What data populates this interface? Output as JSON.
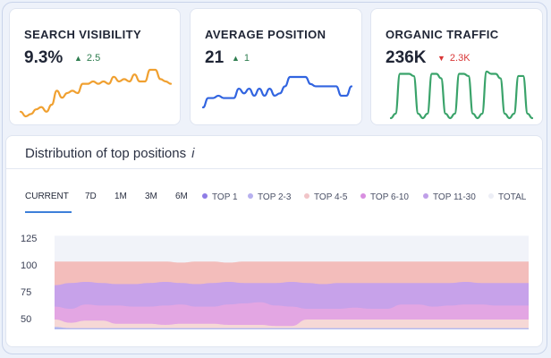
{
  "metrics": [
    {
      "title": "SEARCH VISIBILITY",
      "value": "9.3%",
      "delta": "2.5",
      "direction": "up",
      "color": "#f0a030",
      "spark": [
        2,
        1,
        1.5,
        2.5,
        3,
        2,
        3.5,
        6.5,
        5,
        6,
        6.5,
        6,
        8,
        8,
        8.5,
        8,
        8.5,
        8,
        9.5,
        8.5,
        9,
        8.5,
        10,
        8.5,
        8.5,
        11,
        11,
        9,
        8.5,
        8
      ]
    },
    {
      "title": "AVERAGE POSITION",
      "value": "21",
      "delta": "1",
      "direction": "up",
      "color": "#3164e0",
      "spark": [
        1,
        3,
        3,
        3.5,
        3,
        3,
        3,
        5,
        4,
        5,
        3.5,
        5,
        3.5,
        5,
        3.5,
        4,
        5.5,
        7.5,
        7.5,
        7.5,
        7.5,
        6,
        5.5,
        5.5,
        5.5,
        5.5,
        5.5,
        3.5,
        3.5,
        5.5
      ]
    },
    {
      "title": "ORGANIC TRAFFIC",
      "value": "236K",
      "delta": "2.3K",
      "direction": "down",
      "color": "#3aa36a",
      "spark": [
        2,
        3,
        12,
        12,
        12,
        11.5,
        3,
        2,
        3,
        12,
        12,
        11,
        3,
        2,
        3,
        12,
        12,
        11.5,
        3,
        2,
        3,
        12.5,
        12,
        12,
        11,
        3,
        2,
        3,
        11.5,
        11.5,
        3,
        2
      ]
    }
  ],
  "distribution": {
    "title": "Distribution of top positions",
    "info_icon": "i",
    "tabs": [
      "CURRENT",
      "7D",
      "1M",
      "3M",
      "6M"
    ],
    "active_tab": "CURRENT",
    "legend": [
      {
        "label": "TOP 1",
        "color": "#8e7ce6"
      },
      {
        "label": "TOP 2-3",
        "color": "#b7b0ef"
      },
      {
        "label": "TOP 4-5",
        "color": "#f1c5c8"
      },
      {
        "label": "TOP 6-10",
        "color": "#d88ee0"
      },
      {
        "label": "TOP 11-30",
        "color": "#bf9fe8"
      },
      {
        "label": "TOTAL",
        "color": "#eceef6"
      }
    ],
    "yticks": [
      "125",
      "100",
      "75",
      "50"
    ]
  },
  "chart_data": {
    "type": "area",
    "ylim": [
      40,
      135
    ],
    "xlabel": "",
    "ylabel": "",
    "x": [
      0,
      1,
      2,
      3,
      4,
      5,
      6,
      7,
      8,
      9,
      10,
      11,
      12,
      13,
      14,
      15,
      16,
      17,
      18,
      19,
      20,
      21,
      22,
      23,
      24,
      25,
      26,
      27,
      28,
      29,
      30
    ],
    "series": [
      {
        "name": "TOTAL",
        "color": "#f1f3f9",
        "values": [
          128,
          128,
          128,
          128,
          128,
          128,
          128,
          128,
          128,
          128,
          128,
          128,
          128,
          128,
          128,
          128,
          128,
          128,
          128,
          128,
          128,
          128,
          128,
          128,
          128,
          128,
          128,
          128,
          128,
          128,
          128
        ]
      },
      {
        "name": "TOP 4-5",
        "color": "#f3bdbb",
        "values": [
          104,
          104,
          104,
          104,
          104,
          104,
          104,
          104,
          103,
          104,
          104,
          103,
          104,
          104,
          104,
          104,
          104,
          104,
          104,
          104,
          104,
          104,
          104,
          104,
          104,
          104,
          104,
          104,
          104,
          104,
          104
        ]
      },
      {
        "name": "TOP 11-30",
        "color": "#c7a2ea",
        "values": [
          82,
          84,
          85,
          84,
          83,
          83,
          84,
          85,
          84,
          83,
          84,
          85,
          84,
          84,
          84,
          85,
          84,
          83,
          84,
          84,
          84,
          84,
          84,
          84,
          84,
          84,
          85,
          84,
          84,
          84,
          84
        ]
      },
      {
        "name": "TOP 6-10",
        "color": "#e3a6e3",
        "values": [
          62,
          60,
          64,
          63,
          63,
          62,
          62,
          63,
          64,
          62,
          62,
          64,
          65,
          66,
          63,
          62,
          60,
          60,
          60,
          61,
          60,
          60,
          64,
          64,
          62,
          63,
          64,
          64,
          63,
          63,
          63
        ]
      },
      {
        "name": "TOP 2-3",
        "color": "#f6d8d6",
        "values": [
          50,
          47,
          49,
          49,
          46,
          46,
          46,
          45,
          46,
          46,
          46,
          45,
          45,
          45,
          44,
          44,
          50,
          50,
          50,
          50,
          50,
          50,
          50,
          50,
          50,
          50,
          50,
          50,
          50,
          50,
          50
        ]
      },
      {
        "name": "TOP 1",
        "color": "#b2b8ef",
        "values": [
          43,
          42,
          42,
          42,
          42,
          42,
          42,
          42,
          42,
          42,
          42,
          42,
          42,
          42,
          42,
          42,
          42,
          42,
          42,
          42,
          42,
          42,
          42,
          42,
          42,
          42,
          42,
          42,
          42,
          42,
          42
        ]
      }
    ]
  }
}
